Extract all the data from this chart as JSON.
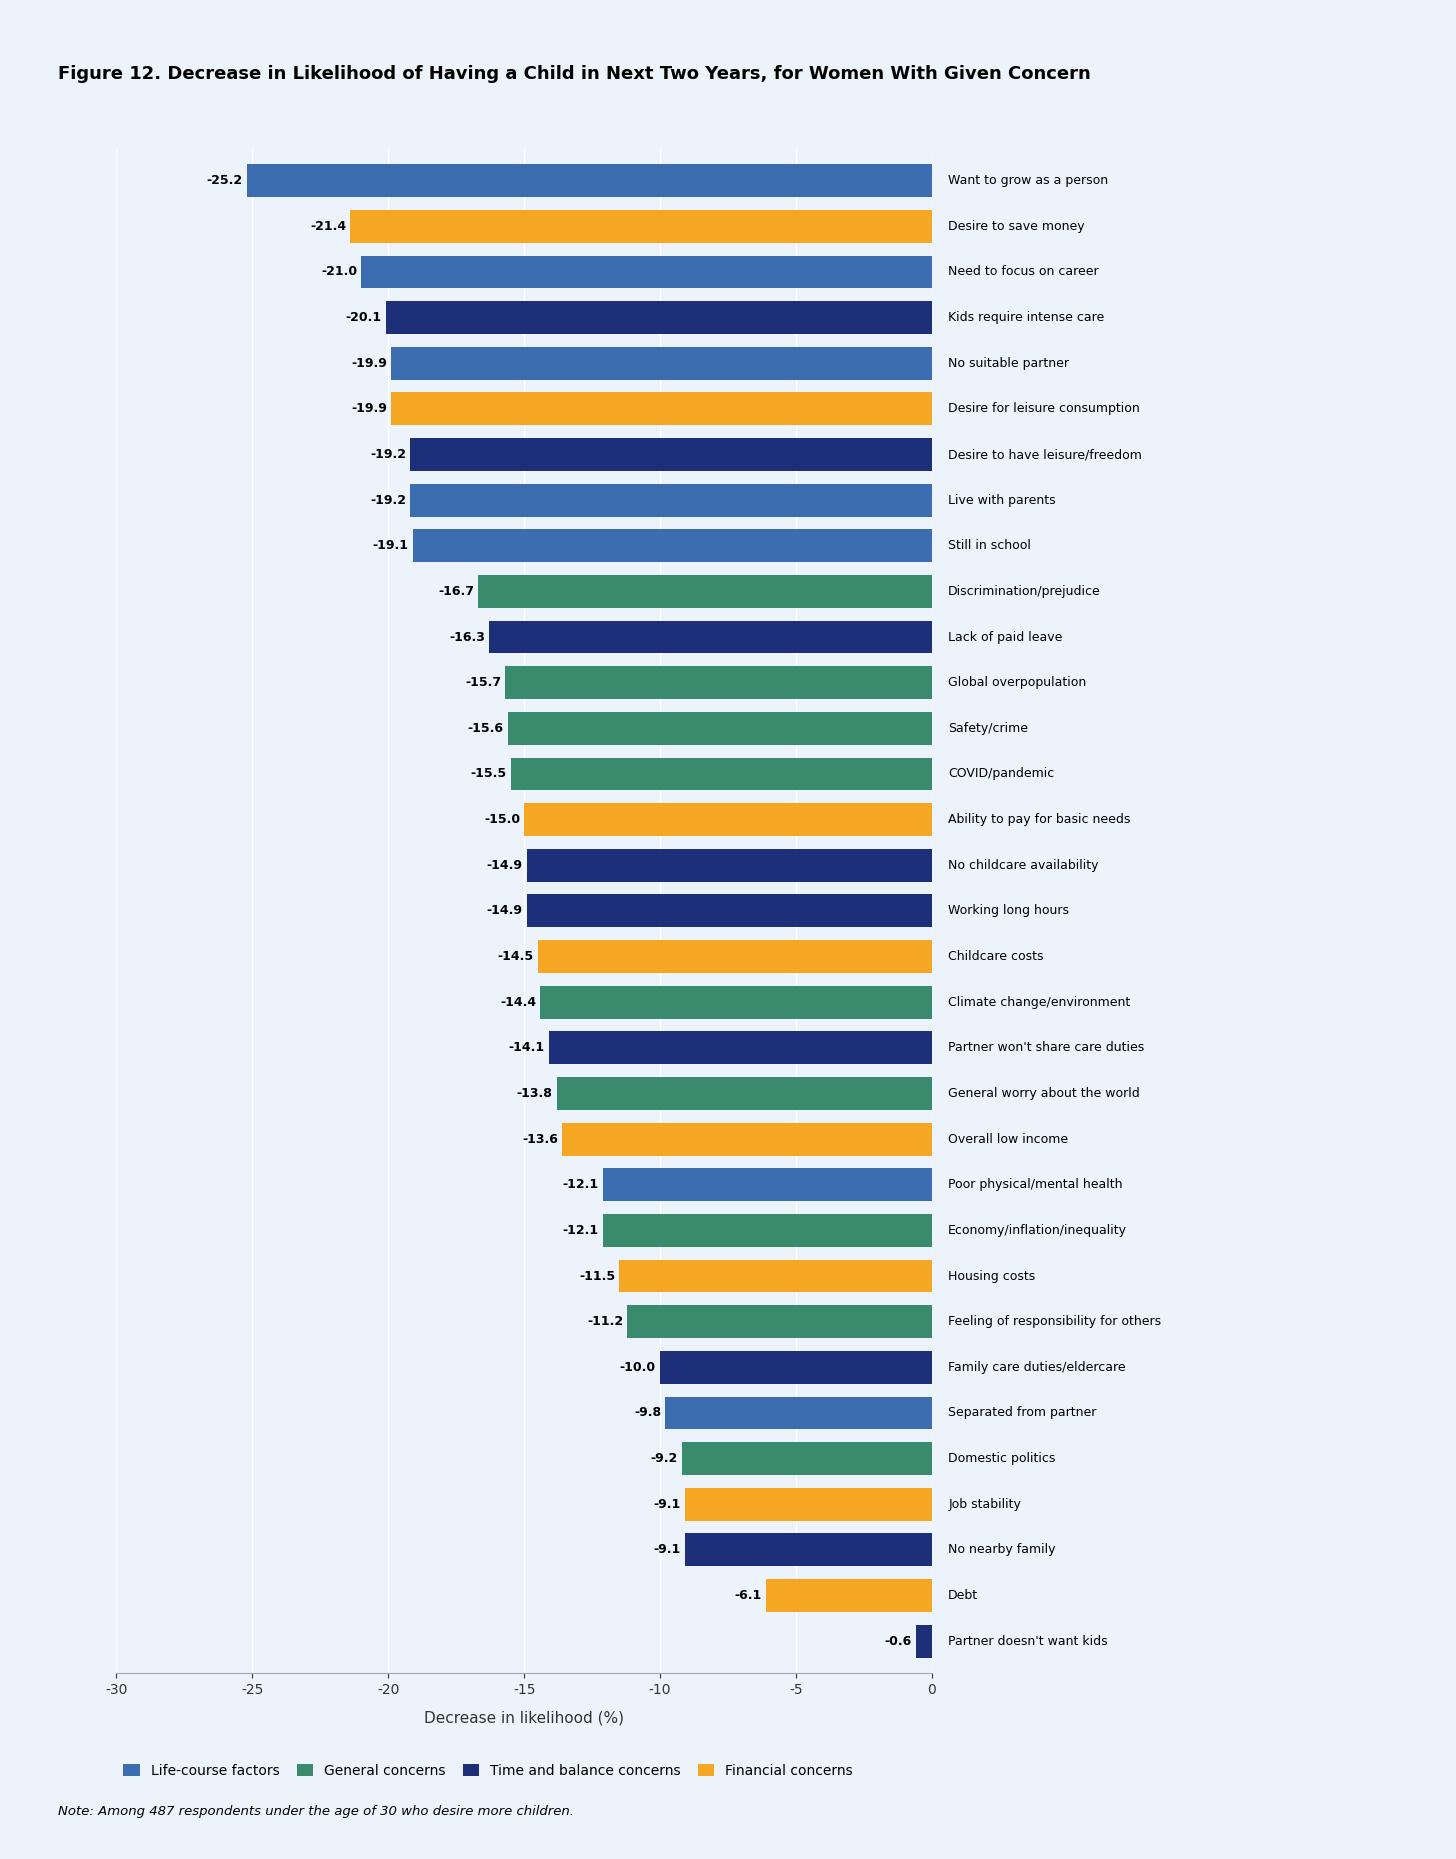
{
  "title": "Figure 12. Decrease in Likelihood of Having a Child in Next Two Years, for Women With Given Concern",
  "xlabel": "Decrease in likelihood (%)",
  "note": "Note: Among 487 respondents under the age of 30 who desire more children.",
  "background_color": "#edf3fa",
  "categories": [
    "Want to grow as a person",
    "Desire to save money",
    "Need to focus on career",
    "Kids require intense care",
    "No suitable partner",
    "Desire for leisure consumption",
    "Desire to have leisure/freedom",
    "Live with parents",
    "Still in school",
    "Discrimination/prejudice",
    "Lack of paid leave",
    "Global overpopulation",
    "Safety/crime",
    "COVID/pandemic",
    "Ability to pay for basic needs",
    "No childcare availability",
    "Working long hours",
    "Childcare costs",
    "Climate change/environment",
    "Partner won't share care duties",
    "General worry about the world",
    "Overall low income",
    "Poor physical/mental health",
    "Economy/inflation/inequality",
    "Housing costs",
    "Feeling of responsibility for others",
    "Family care duties/eldercare",
    "Separated from partner",
    "Domestic politics",
    "Job stability",
    "No nearby family",
    "Debt",
    "Partner doesn't want kids"
  ],
  "values": [
    -25.2,
    -21.4,
    -21.0,
    -20.1,
    -19.9,
    -19.9,
    -19.2,
    -19.2,
    -19.1,
    -16.7,
    -16.3,
    -15.7,
    -15.6,
    -15.5,
    -15.0,
    -14.9,
    -14.9,
    -14.5,
    -14.4,
    -14.1,
    -13.8,
    -13.6,
    -12.1,
    -12.1,
    -11.5,
    -11.2,
    -10.0,
    -9.8,
    -9.2,
    -9.1,
    -9.1,
    -6.1,
    -0.6
  ],
  "colors": [
    "#3c6db0",
    "#f5a623",
    "#3c6db0",
    "#1e2f7a",
    "#3c6db0",
    "#f5a623",
    "#1e2f7a",
    "#3c6db0",
    "#3c6db0",
    "#3a8a6e",
    "#1e2f7a",
    "#3a8a6e",
    "#3a8a6e",
    "#3a8a6e",
    "#f5a623",
    "#1e2f7a",
    "#1e2f7a",
    "#f5a623",
    "#3a8a6e",
    "#1e2f7a",
    "#3a8a6e",
    "#f5a623",
    "#3c6db0",
    "#3a8a6e",
    "#f5a623",
    "#3a8a6e",
    "#1e2f7a",
    "#3c6db0",
    "#3a8a6e",
    "#f5a623",
    "#1e2f7a",
    "#f5a623",
    "#1e2f7a"
  ],
  "legend": [
    {
      "label": "Life-course factors",
      "color": "#3c6db0"
    },
    {
      "label": "General concerns",
      "color": "#3a8a6e"
    },
    {
      "label": "Time and balance concerns",
      "color": "#1e2f7a"
    },
    {
      "label": "Financial concerns",
      "color": "#f5a623"
    }
  ],
  "xlim_left": -30,
  "xlim_right": 0,
  "xticks": [
    -30,
    -25,
    -20,
    -15,
    -10,
    -5,
    0
  ],
  "bar_height": 0.72
}
